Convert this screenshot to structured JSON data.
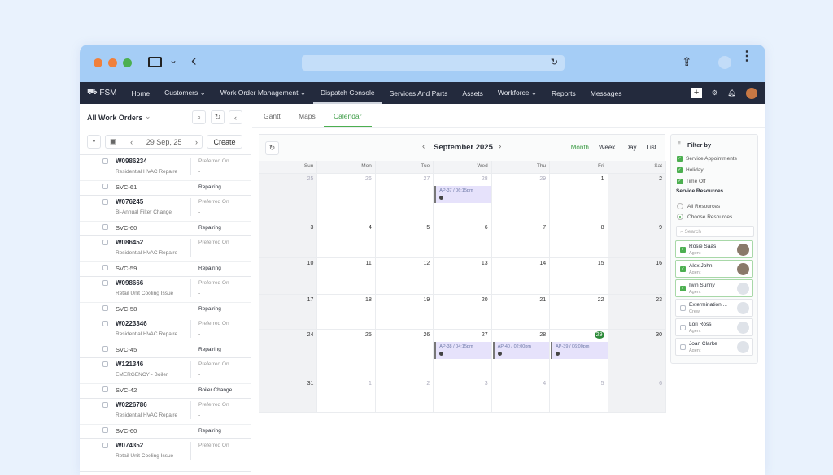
{
  "nav": {
    "logo": "FSM",
    "items": [
      {
        "label": "Home"
      },
      {
        "label": "Customers ⌄"
      },
      {
        "label": "Work Order Management ⌄"
      },
      {
        "label": "Dispatch Console",
        "active": true
      },
      {
        "label": "Services And Parts"
      },
      {
        "label": "Assets"
      },
      {
        "label": "Workforce ⌄"
      },
      {
        "label": "Reports"
      },
      {
        "label": "Messages"
      }
    ]
  },
  "left": {
    "title": "All Work Orders",
    "date": "29 Sep, 25",
    "create": "Create",
    "orders": [
      {
        "id": "W0986234",
        "desc": "Residential HVAC Repaire",
        "pref": "Preferred On",
        "val": "-",
        "svc": "SVC-61",
        "status": "Repairing"
      },
      {
        "id": "W076245",
        "desc": "Bi-Annual Filter Change",
        "pref": "Preferred On",
        "val": "-",
        "svc": "SVC-60",
        "status": "Repairing"
      },
      {
        "id": "W086452",
        "desc": "Residential HVAC Repaire",
        "pref": "Preferred On",
        "val": "-",
        "svc": "SVC-59",
        "status": "Repairing"
      },
      {
        "id": "W098666",
        "desc": "Retail Unit Cooling Issue",
        "pref": "Preferred On",
        "val": "-",
        "svc": "SVC-58",
        "status": "Repairing"
      },
      {
        "id": "W0223346",
        "desc": "Residential HVAC Repaire",
        "pref": "Preferred On",
        "val": "-",
        "svc": "SVC-45",
        "status": "Repairing"
      },
      {
        "id": "W121346",
        "desc": "EMERGENCY - Boiler",
        "pref": "Preferred On",
        "val": "-",
        "svc": "SVC-42",
        "status": "Boiler Change"
      },
      {
        "id": "W0226786",
        "desc": "Residential HVAC Repaire",
        "pref": "Preferred On",
        "val": "-",
        "svc": "SVC-60",
        "status": "Repairing"
      },
      {
        "id": "W074352",
        "desc": "Retail Unit Cooling Issue",
        "pref": "Preferred On",
        "val": "-"
      }
    ]
  },
  "tabs": [
    "Gantt",
    "Maps",
    "Calendar"
  ],
  "calendar": {
    "title": "September 2025",
    "views": [
      "Month",
      "Week",
      "Day",
      "List"
    ],
    "active_view": "Month",
    "days": [
      "Sun",
      "Mon",
      "Tue",
      "Wed",
      "Thu",
      "Fri",
      "Sat"
    ],
    "weeks": [
      [
        "25",
        "26",
        "27",
        "28",
        "29",
        "1",
        "2"
      ],
      [
        "3",
        "4",
        "5",
        "6",
        "7",
        "8",
        "9"
      ],
      [
        "10",
        "11",
        "12",
        "13",
        "14",
        "15",
        "16"
      ],
      [
        "17",
        "18",
        "19",
        "20",
        "21",
        "22",
        "23"
      ],
      [
        "24",
        "25",
        "26",
        "27",
        "28",
        "29",
        "30"
      ],
      [
        "31",
        "1",
        "2",
        "3",
        "4",
        "5",
        "6"
      ]
    ],
    "events": [
      {
        "week": 0,
        "day": 3,
        "label": "AP-37 / 06:15pm"
      },
      {
        "week": 4,
        "day": 3,
        "label": "AP-38 / 04:15pm"
      },
      {
        "week": 4,
        "day": 4,
        "label": "AP-40 / 02:00pm"
      },
      {
        "week": 4,
        "day": 5,
        "label": "AP-39 / 06:00pm"
      }
    ]
  },
  "filter": {
    "title": "Filter by",
    "types": [
      "Service Appointments",
      "Holiday",
      "Time Off"
    ],
    "resources_title": "Service Resources",
    "radios": [
      "All Resources",
      "Choose Resources"
    ],
    "search_placeholder": "Search",
    "resources": [
      {
        "name": "Rosie Saas",
        "role": "Agent",
        "checked": true
      },
      {
        "name": "Alex John",
        "role": "Agent",
        "checked": true
      },
      {
        "name": "Iwin Sunny",
        "role": "Agent",
        "checked": true
      },
      {
        "name": "Extermination ...",
        "role": "Crew",
        "checked": false
      },
      {
        "name": "Lori Ross",
        "role": "Agent",
        "checked": false
      },
      {
        "name": "Joan Clarke",
        "role": "Agent",
        "checked": false
      }
    ]
  },
  "colors": {
    "accent": "#4caf50",
    "nav": "#232a3d",
    "chrome": "#a5cdf6",
    "event": "#e6e2fb"
  }
}
